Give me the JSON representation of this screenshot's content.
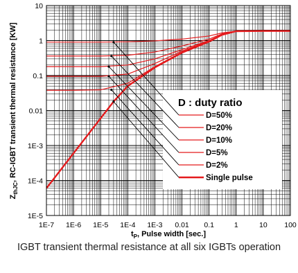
{
  "caption": "IGBT transient thermal resistance at all six IGBTs operation",
  "chart_data": {
    "type": "line",
    "x_scale": "log",
    "y_scale": "log",
    "xlim": [
      1e-07,
      100
    ],
    "ylim": [
      1e-05,
      10
    ],
    "grid": true,
    "x_ticks": [
      "1E-7",
      "1E-6",
      "1E-5",
      "1E-4",
      "1E-3",
      "0.01",
      "0.1",
      "1",
      "10",
      "100"
    ],
    "y_ticks": [
      "1E-5",
      "1E-4",
      "1E-3",
      "0.01",
      "0.1",
      "1",
      "10"
    ],
    "xlabel_main": "t",
    "xlabel_sub": "P",
    "xlabel_rest": ", Pulse width [sec.]",
    "ylabel_main": "Z",
    "ylabel_sub": "thJC",
    "ylabel_rest": ", RC-IGBT transient thermal resistance [KW]",
    "legend_title": "D : duty ratio",
    "legend_position": "center-right",
    "line_color": "#e41a1c",
    "series": [
      {
        "name": "D=50%",
        "x": [
          1e-07,
          1e-06,
          1e-05,
          0.0001,
          0.001,
          0.01,
          0.1,
          0.3,
          1,
          10,
          100
        ],
        "y": [
          0.9,
          0.9,
          0.9,
          0.92,
          0.98,
          1.1,
          1.35,
          1.65,
          1.85,
          1.88,
          1.88
        ]
      },
      {
        "name": "D=20%",
        "x": [
          1e-07,
          1e-06,
          1e-05,
          0.0001,
          0.001,
          0.01,
          0.1,
          0.3,
          1,
          10,
          100
        ],
        "y": [
          0.36,
          0.36,
          0.36,
          0.38,
          0.47,
          0.7,
          1.1,
          1.55,
          1.85,
          1.88,
          1.88
        ]
      },
      {
        "name": "D=10%",
        "x": [
          1e-07,
          1e-06,
          1e-05,
          0.0001,
          0.001,
          0.01,
          0.1,
          0.3,
          1,
          10,
          100
        ],
        "y": [
          0.18,
          0.18,
          0.18,
          0.2,
          0.3,
          0.55,
          1.0,
          1.5,
          1.85,
          1.88,
          1.88
        ]
      },
      {
        "name": "D=5%",
        "x": [
          1e-07,
          1e-06,
          1e-05,
          0.0001,
          0.001,
          0.01,
          0.1,
          0.3,
          1,
          10,
          100
        ],
        "y": [
          0.095,
          0.095,
          0.095,
          0.11,
          0.22,
          0.5,
          0.97,
          1.48,
          1.85,
          1.88,
          1.88
        ]
      },
      {
        "name": "D=2%",
        "x": [
          1e-07,
          1e-06,
          1e-05,
          0.0001,
          0.001,
          0.01,
          0.1,
          0.3,
          1,
          10,
          100
        ],
        "y": [
          0.038,
          0.038,
          0.039,
          0.06,
          0.18,
          0.47,
          0.95,
          1.47,
          1.85,
          1.88,
          1.88
        ]
      },
      {
        "name": "Single pulse",
        "x": [
          1e-07,
          1e-06,
          1e-05,
          3e-05,
          0.0001,
          0.001,
          0.01,
          0.1,
          0.3,
          1,
          10,
          100
        ],
        "y": [
          6e-05,
          0.0006,
          0.006,
          0.018,
          0.05,
          0.17,
          0.45,
          0.93,
          1.45,
          1.85,
          1.88,
          1.88
        ],
        "bold": true
      }
    ]
  }
}
